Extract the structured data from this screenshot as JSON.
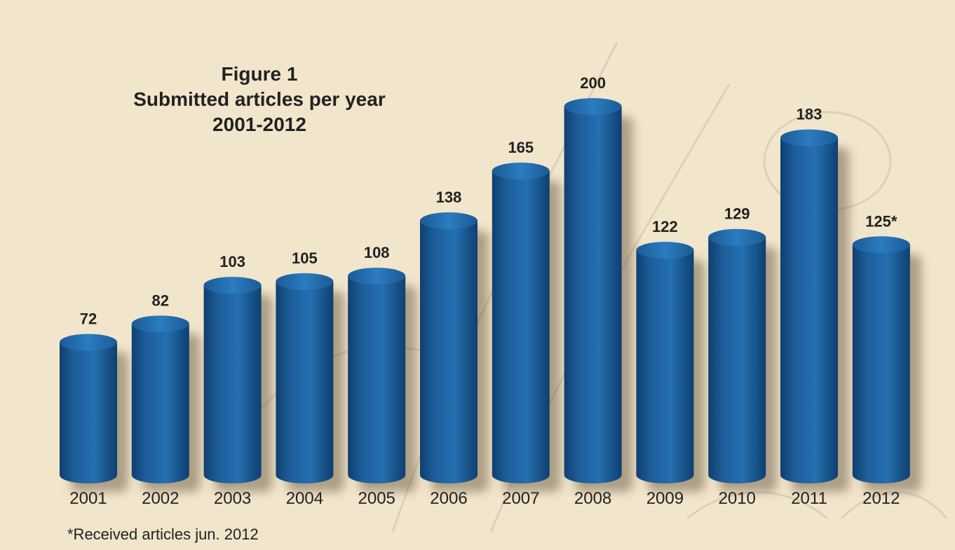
{
  "figure_label": "Figure 1",
  "title": "Submitted articles per year",
  "subtitle": "2001-2012",
  "footnote": "*Received articles jun. 2012",
  "colors": {
    "background": "#f1e5cb",
    "bar": "#1f6aa8",
    "text": "#222222"
  },
  "chart_data": {
    "type": "bar",
    "title": "Submitted articles per year",
    "categories": [
      "2001",
      "2002",
      "2003",
      "2004",
      "2005",
      "2006",
      "2007",
      "2008",
      "2009",
      "2010",
      "2011",
      "2012"
    ],
    "values": [
      72,
      82,
      103,
      105,
      108,
      138,
      165,
      200,
      122,
      129,
      183,
      125
    ],
    "data_labels": [
      "72",
      "82",
      "103",
      "105",
      "108",
      "138",
      "165",
      "200",
      "122",
      "129",
      "183",
      "125*"
    ],
    "xlabel": "",
    "ylabel": "",
    "ylim": [
      0,
      200
    ],
    "grid": false,
    "legend": "none",
    "bar_style": "3d-cylinder"
  }
}
